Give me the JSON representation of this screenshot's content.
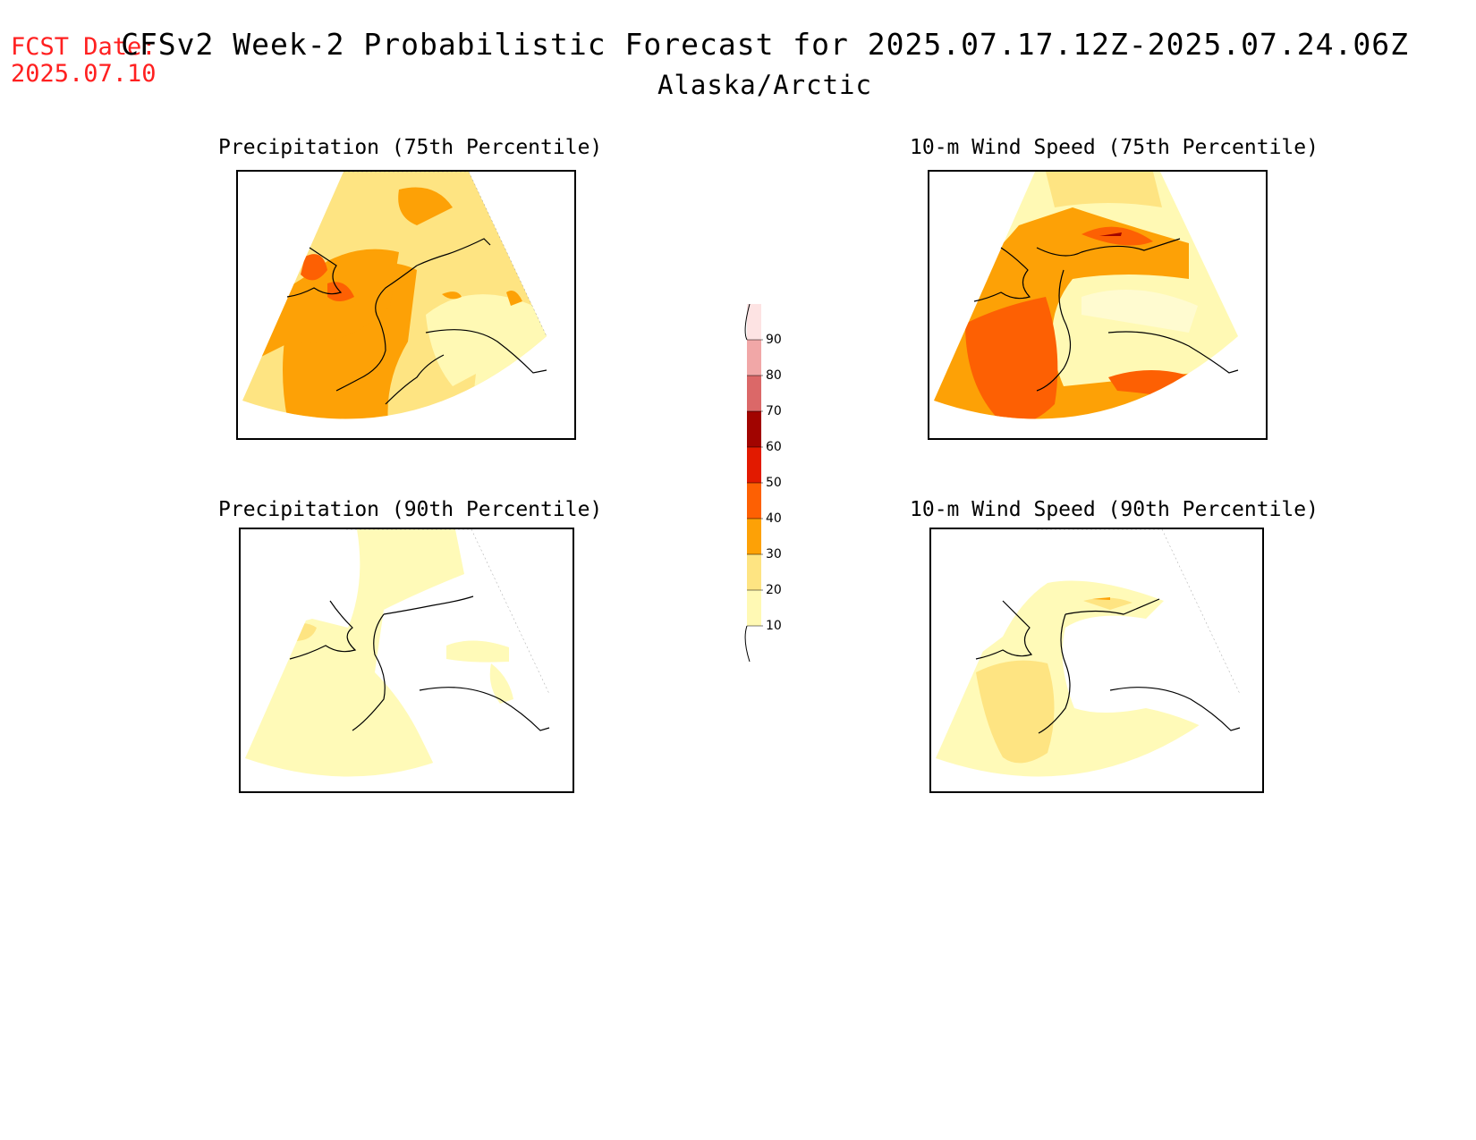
{
  "header": {
    "fcst_line1": "FCST Date:",
    "fcst_line2": "2025.07.10",
    "title": "CFSv2 Week-2 Probabilistic Forecast for 2025.07.17.12Z-2025.07.24.06Z",
    "subtitle": "Alaska/Arctic"
  },
  "panels": [
    {
      "title": "Precipitation (75th Percentile)"
    },
    {
      "title": "10-m Wind Speed (75th Percentile)"
    },
    {
      "title": "Precipitation (90th Percentile)"
    },
    {
      "title": "10-m Wind Speed (90th Percentile)"
    }
  ],
  "colorbar": {
    "levels": [
      "10",
      "20",
      "30",
      "40",
      "50",
      "60",
      "70",
      "80",
      "90"
    ],
    "colors": [
      "#fff9b4",
      "#fee482",
      "#fda106",
      "#fd6003",
      "#e21a00",
      "#a10400",
      "#db6868",
      "#f1a7a7",
      "#fde3e3"
    ]
  }
}
